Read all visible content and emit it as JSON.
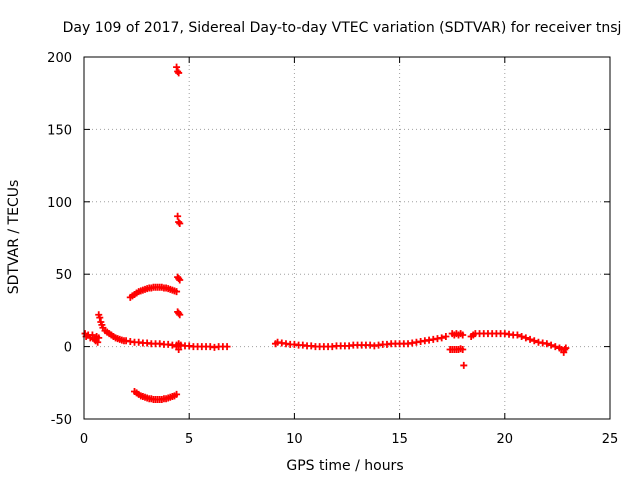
{
  "chart_data": {
    "type": "scatter",
    "title": "Day 109 of 2017, Sidereal Day-to-day VTEC variation (SDTVAR) for receiver tnsj",
    "xlabel": "GPS time / hours",
    "ylabel": "SDTVAR / TECUs",
    "xlim": [
      0,
      25
    ],
    "ylim": [
      -50,
      200
    ],
    "xticks": [
      0,
      5,
      10,
      15,
      20,
      25
    ],
    "yticks": [
      -50,
      0,
      50,
      100,
      150,
      200
    ],
    "grid": true,
    "marker": "+",
    "color": "#ff0000",
    "segments": [
      {
        "name": "early-scatter",
        "points": [
          [
            0.05,
            9
          ],
          [
            0.1,
            7
          ],
          [
            0.2,
            8
          ],
          [
            0.3,
            6
          ],
          [
            0.4,
            8
          ],
          [
            0.5,
            5
          ],
          [
            0.55,
            4
          ],
          [
            0.6,
            7
          ],
          [
            0.65,
            3
          ],
          [
            0.7,
            6
          ]
        ]
      },
      {
        "name": "decay-curve",
        "points": [
          [
            0.7,
            22
          ],
          [
            0.75,
            20
          ],
          [
            0.8,
            17
          ],
          [
            0.85,
            15
          ],
          [
            0.9,
            13
          ],
          [
            1.0,
            11
          ],
          [
            1.1,
            10
          ],
          [
            1.2,
            9
          ],
          [
            1.3,
            8
          ],
          [
            1.4,
            7
          ],
          [
            1.5,
            6
          ],
          [
            1.6,
            5.5
          ],
          [
            1.7,
            5
          ],
          [
            1.8,
            4.5
          ],
          [
            1.9,
            4
          ],
          [
            2.0,
            4
          ],
          [
            2.2,
            3.5
          ],
          [
            2.4,
            3
          ],
          [
            2.6,
            3
          ],
          [
            2.8,
            2.5
          ],
          [
            3.0,
            2.5
          ],
          [
            3.2,
            2
          ],
          [
            3.4,
            2
          ],
          [
            3.6,
            2
          ],
          [
            3.8,
            1.5
          ],
          [
            4.0,
            1.5
          ],
          [
            4.2,
            1
          ],
          [
            4.4,
            1
          ],
          [
            4.5,
            2
          ]
        ]
      },
      {
        "name": "upper-arc",
        "points": [
          [
            2.2,
            34
          ],
          [
            2.3,
            35
          ],
          [
            2.4,
            36
          ],
          [
            2.5,
            37
          ],
          [
            2.6,
            38
          ],
          [
            2.7,
            38.5
          ],
          [
            2.8,
            39
          ],
          [
            2.9,
            39.5
          ],
          [
            3.0,
            40
          ],
          [
            3.1,
            40.5
          ],
          [
            3.2,
            40.5
          ],
          [
            3.3,
            41
          ],
          [
            3.4,
            41
          ],
          [
            3.5,
            41
          ],
          [
            3.6,
            41
          ],
          [
            3.7,
            41
          ],
          [
            3.8,
            40.5
          ],
          [
            3.9,
            40.5
          ],
          [
            4.0,
            40
          ],
          [
            4.1,
            39.5
          ],
          [
            4.2,
            39
          ],
          [
            4.3,
            38.5
          ],
          [
            4.4,
            38
          ]
        ]
      },
      {
        "name": "lower-arc",
        "points": [
          [
            2.4,
            -31
          ],
          [
            2.5,
            -32
          ],
          [
            2.6,
            -33
          ],
          [
            2.7,
            -34
          ],
          [
            2.8,
            -34.5
          ],
          [
            2.9,
            -35
          ],
          [
            3.0,
            -35.5
          ],
          [
            3.1,
            -36
          ],
          [
            3.2,
            -36
          ],
          [
            3.3,
            -36.5
          ],
          [
            3.4,
            -36.5
          ],
          [
            3.5,
            -36.5
          ],
          [
            3.6,
            -36.5
          ],
          [
            3.7,
            -36.5
          ],
          [
            3.8,
            -36
          ],
          [
            3.9,
            -36
          ],
          [
            4.0,
            -35.5
          ],
          [
            4.1,
            -35
          ],
          [
            4.2,
            -34.5
          ],
          [
            4.3,
            -34
          ],
          [
            4.4,
            -33
          ]
        ]
      },
      {
        "name": "outliers",
        "points": [
          [
            4.4,
            193
          ],
          [
            4.45,
            190
          ],
          [
            4.5,
            189
          ],
          [
            4.45,
            90
          ],
          [
            4.5,
            86
          ],
          [
            4.55,
            85
          ],
          [
            4.45,
            48
          ],
          [
            4.5,
            47
          ],
          [
            4.55,
            46
          ],
          [
            4.45,
            24
          ],
          [
            4.5,
            23
          ],
          [
            4.55,
            22
          ],
          [
            4.5,
            -2
          ],
          [
            4.4,
            0
          ]
        ]
      },
      {
        "name": "flat-early",
        "points": [
          [
            4.6,
            1
          ],
          [
            4.8,
            0.5
          ],
          [
            5.0,
            0.5
          ],
          [
            5.2,
            0
          ],
          [
            5.4,
            0
          ],
          [
            5.6,
            0
          ],
          [
            5.8,
            0
          ],
          [
            6.0,
            0
          ],
          [
            6.2,
            -0.5
          ],
          [
            6.4,
            0
          ],
          [
            6.6,
            0
          ],
          [
            6.8,
            0
          ]
        ]
      },
      {
        "name": "midday",
        "points": [
          [
            9.1,
            2
          ],
          [
            9.2,
            3
          ],
          [
            9.4,
            2.5
          ],
          [
            9.6,
            2
          ],
          [
            9.8,
            1.5
          ],
          [
            10.0,
            1.5
          ],
          [
            10.2,
            1
          ],
          [
            10.4,
            1
          ],
          [
            10.6,
            0.5
          ],
          [
            10.8,
            0.5
          ],
          [
            11.0,
            0
          ],
          [
            11.2,
            0
          ],
          [
            11.4,
            0
          ],
          [
            11.6,
            0
          ],
          [
            11.8,
            0
          ],
          [
            12.0,
            0.5
          ],
          [
            12.2,
            0.5
          ],
          [
            12.4,
            0.5
          ],
          [
            12.6,
            0.5
          ],
          [
            12.8,
            1
          ],
          [
            13.0,
            1
          ],
          [
            13.2,
            1
          ],
          [
            13.4,
            1
          ],
          [
            13.6,
            1
          ],
          [
            13.8,
            0.5
          ],
          [
            14.0,
            1
          ],
          [
            14.2,
            1.5
          ],
          [
            14.4,
            1.5
          ],
          [
            14.6,
            2
          ],
          [
            14.8,
            2
          ],
          [
            15.0,
            2
          ],
          [
            15.2,
            2
          ],
          [
            15.4,
            2
          ],
          [
            15.6,
            2.5
          ],
          [
            15.8,
            3
          ],
          [
            16.0,
            3.5
          ],
          [
            16.2,
            4
          ],
          [
            16.4,
            4.5
          ],
          [
            16.6,
            5
          ],
          [
            16.8,
            5.5
          ],
          [
            17.0,
            6
          ],
          [
            17.2,
            7
          ]
        ]
      },
      {
        "name": "late-scatter",
        "points": [
          [
            17.5,
            9
          ],
          [
            17.6,
            8
          ],
          [
            17.7,
            9
          ],
          [
            17.8,
            8
          ],
          [
            17.9,
            9
          ],
          [
            18.0,
            8
          ],
          [
            17.4,
            -2
          ],
          [
            17.5,
            -2
          ],
          [
            17.6,
            -2
          ],
          [
            17.7,
            -2
          ],
          [
            17.8,
            -2
          ],
          [
            17.9,
            -1.5
          ],
          [
            18.0,
            -2
          ],
          [
            18.05,
            -13
          ]
        ]
      },
      {
        "name": "evening",
        "points": [
          [
            18.4,
            7
          ],
          [
            18.5,
            8
          ],
          [
            18.6,
            9
          ],
          [
            18.8,
            9
          ],
          [
            19.0,
            9
          ],
          [
            19.2,
            9
          ],
          [
            19.4,
            9
          ],
          [
            19.6,
            9
          ],
          [
            19.8,
            9
          ],
          [
            20.0,
            9
          ],
          [
            20.2,
            8.5
          ],
          [
            20.4,
            8
          ],
          [
            20.6,
            8
          ],
          [
            20.8,
            7
          ],
          [
            21.0,
            6
          ],
          [
            21.2,
            5
          ],
          [
            21.4,
            4
          ],
          [
            21.6,
            3
          ],
          [
            21.8,
            2.5
          ],
          [
            22.0,
            2
          ],
          [
            22.2,
            1
          ],
          [
            22.4,
            0
          ],
          [
            22.6,
            -1
          ],
          [
            22.7,
            -2
          ],
          [
            22.8,
            -4
          ],
          [
            22.85,
            -2
          ],
          [
            22.9,
            -1
          ]
        ]
      }
    ]
  }
}
